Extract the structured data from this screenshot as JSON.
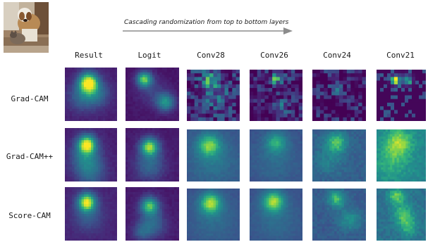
{
  "figure": {
    "arrow_caption": "Cascading randomization from top to bottom layers",
    "columns": [
      "Result",
      "Logit",
      "Conv28",
      "Conv26",
      "Conv24",
      "Conv21"
    ],
    "rows": [
      "Grad-CAM",
      "Grad-CAM++",
      "Score-CAM"
    ]
  },
  "colors": {
    "colormap": "viridis",
    "arrow": "#8c8c8c"
  },
  "icons": {
    "input_photo": "dog-and-cat-photo"
  }
}
